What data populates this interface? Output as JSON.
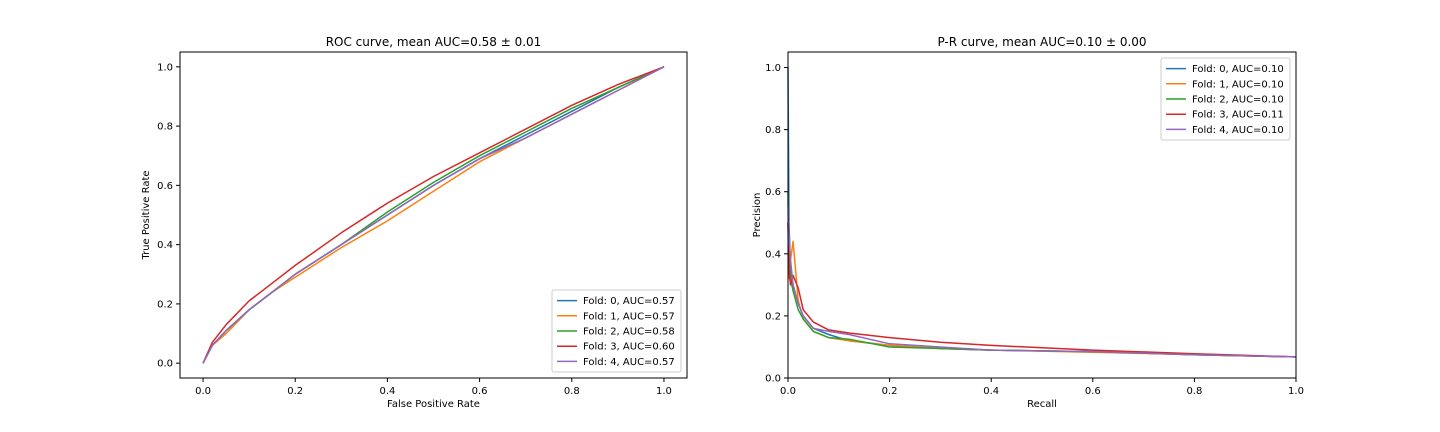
{
  "chart_data": [
    {
      "type": "line",
      "title": "ROC curve, mean AUC=0.58 ± 0.01",
      "xlabel": "False Positive Rate",
      "ylabel": "True Positive Rate",
      "xlim": [
        -0.05,
        1.05
      ],
      "ylim": [
        -0.05,
        1.05
      ],
      "xticks": [
        "0.0",
        "0.2",
        "0.4",
        "0.6",
        "0.8",
        "1.0"
      ],
      "yticks": [
        "0.0",
        "0.2",
        "0.4",
        "0.6",
        "0.8",
        "1.0"
      ],
      "grid": false,
      "legend_position": "lower-right",
      "series": [
        {
          "name": "Fold: 0, AUC=0.57",
          "color": "#1f77b4",
          "x": [
            0,
            0.02,
            0.05,
            0.1,
            0.15,
            0.2,
            0.3,
            0.4,
            0.5,
            0.6,
            0.7,
            0.8,
            0.9,
            1.0
          ],
          "y": [
            0,
            0.06,
            0.11,
            0.18,
            0.24,
            0.3,
            0.4,
            0.5,
            0.6,
            0.69,
            0.77,
            0.85,
            0.93,
            1.0
          ]
        },
        {
          "name": "Fold: 1, AUC=0.57",
          "color": "#ff7f0e",
          "x": [
            0,
            0.02,
            0.05,
            0.1,
            0.15,
            0.2,
            0.3,
            0.4,
            0.5,
            0.6,
            0.7,
            0.8,
            0.9,
            1.0
          ],
          "y": [
            0,
            0.06,
            0.1,
            0.18,
            0.24,
            0.29,
            0.39,
            0.48,
            0.58,
            0.68,
            0.76,
            0.84,
            0.92,
            1.0
          ]
        },
        {
          "name": "Fold: 2, AUC=0.58",
          "color": "#2ca02c",
          "x": [
            0,
            0.02,
            0.05,
            0.1,
            0.15,
            0.2,
            0.3,
            0.4,
            0.5,
            0.6,
            0.7,
            0.8,
            0.9,
            1.0
          ],
          "y": [
            0,
            0.06,
            0.11,
            0.18,
            0.24,
            0.3,
            0.4,
            0.51,
            0.61,
            0.7,
            0.78,
            0.86,
            0.93,
            1.0
          ]
        },
        {
          "name": "Fold: 3, AUC=0.60",
          "color": "#d62728",
          "x": [
            0,
            0.02,
            0.05,
            0.1,
            0.15,
            0.2,
            0.3,
            0.4,
            0.5,
            0.6,
            0.7,
            0.8,
            0.9,
            1.0
          ],
          "y": [
            0,
            0.07,
            0.13,
            0.21,
            0.27,
            0.33,
            0.44,
            0.54,
            0.63,
            0.71,
            0.79,
            0.87,
            0.94,
            1.0
          ]
        },
        {
          "name": "Fold: 4, AUC=0.57",
          "color": "#9467bd",
          "x": [
            0,
            0.02,
            0.05,
            0.1,
            0.15,
            0.2,
            0.3,
            0.4,
            0.5,
            0.6,
            0.7,
            0.8,
            0.9,
            1.0
          ],
          "y": [
            0,
            0.06,
            0.11,
            0.18,
            0.24,
            0.3,
            0.4,
            0.5,
            0.6,
            0.69,
            0.76,
            0.84,
            0.92,
            1.0
          ]
        }
      ]
    },
    {
      "type": "line",
      "title": "P-R curve, mean AUC=0.10 ± 0.00",
      "xlabel": "Recall",
      "ylabel": "Precision",
      "xlim": [
        0,
        1
      ],
      "ylim": [
        0,
        1.05
      ],
      "xticks": [
        "0.0",
        "0.2",
        "0.4",
        "0.6",
        "0.8",
        "1.0"
      ],
      "yticks": [
        "0.0",
        "0.2",
        "0.4",
        "0.6",
        "0.8",
        "1.0"
      ],
      "grid": false,
      "legend_position": "upper-right",
      "series": [
        {
          "name": "Fold: 0, AUC=0.10",
          "color": "#1f77b4",
          "x": [
            0,
            0.002,
            0.005,
            0.01,
            0.02,
            0.03,
            0.05,
            0.08,
            0.12,
            0.2,
            0.3,
            0.4,
            0.6,
            0.8,
            1.0
          ],
          "y": [
            1.0,
            0.5,
            0.35,
            0.3,
            0.24,
            0.2,
            0.16,
            0.14,
            0.12,
            0.105,
            0.095,
            0.09,
            0.085,
            0.075,
            0.068
          ]
        },
        {
          "name": "Fold: 1, AUC=0.10",
          "color": "#ff7f0e",
          "x": [
            0,
            0.002,
            0.005,
            0.01,
            0.02,
            0.03,
            0.05,
            0.08,
            0.12,
            0.2,
            0.3,
            0.4,
            0.6,
            0.8,
            1.0
          ],
          "y": [
            0.5,
            0.32,
            0.38,
            0.44,
            0.25,
            0.19,
            0.15,
            0.13,
            0.12,
            0.105,
            0.095,
            0.09,
            0.083,
            0.075,
            0.068
          ]
        },
        {
          "name": "Fold: 2, AUC=0.10",
          "color": "#2ca02c",
          "x": [
            0,
            0.002,
            0.005,
            0.01,
            0.02,
            0.03,
            0.05,
            0.08,
            0.12,
            0.2,
            0.3,
            0.4,
            0.6,
            0.8,
            1.0
          ],
          "y": [
            0.6,
            0.4,
            0.32,
            0.28,
            0.22,
            0.19,
            0.15,
            0.13,
            0.125,
            0.1,
            0.095,
            0.09,
            0.085,
            0.075,
            0.068
          ]
        },
        {
          "name": "Fold: 3, AUC=0.11",
          "color": "#d62728",
          "x": [
            0,
            0.002,
            0.005,
            0.01,
            0.02,
            0.03,
            0.05,
            0.08,
            0.12,
            0.2,
            0.3,
            0.4,
            0.6,
            0.8,
            1.0
          ],
          "y": [
            0.5,
            0.35,
            0.3,
            0.33,
            0.29,
            0.22,
            0.18,
            0.155,
            0.145,
            0.13,
            0.115,
            0.105,
            0.09,
            0.078,
            0.068
          ]
        },
        {
          "name": "Fold: 4, AUC=0.10",
          "color": "#9467bd",
          "x": [
            0,
            0.002,
            0.005,
            0.01,
            0.02,
            0.03,
            0.05,
            0.08,
            0.12,
            0.2,
            0.3,
            0.4,
            0.6,
            0.8,
            1.0
          ],
          "y": [
            0.57,
            0.45,
            0.38,
            0.3,
            0.24,
            0.2,
            0.16,
            0.15,
            0.14,
            0.11,
            0.1,
            0.09,
            0.085,
            0.075,
            0.068
          ]
        }
      ]
    }
  ]
}
